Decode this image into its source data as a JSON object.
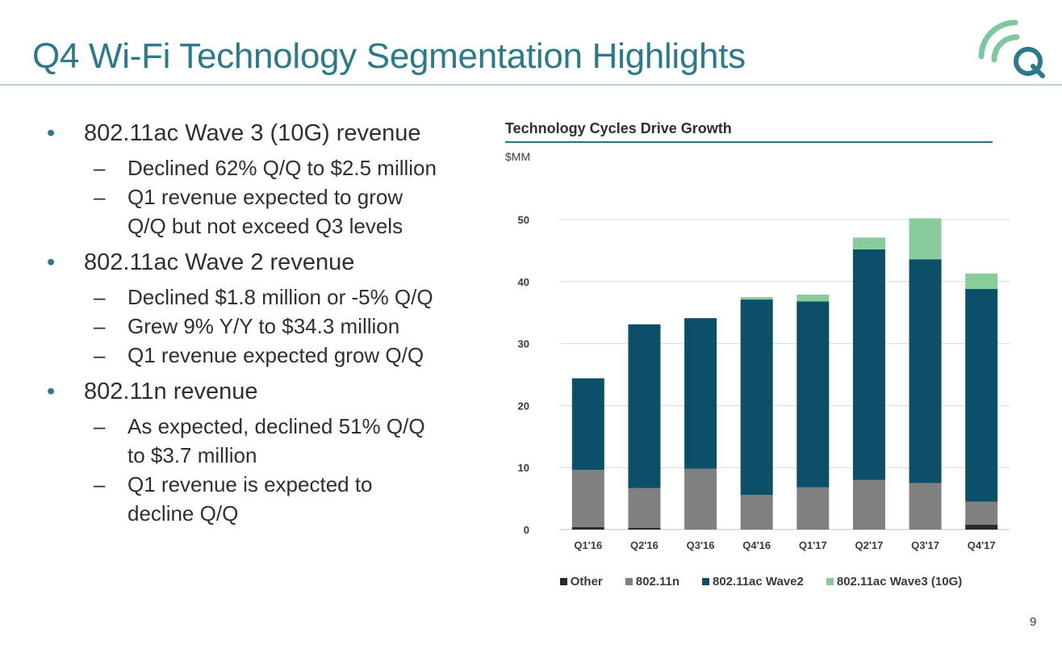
{
  "slide": {
    "title": "Q4 Wi-Fi Technology Segmentation Highlights",
    "page_number": "9",
    "colors": {
      "title": "#2b7a8c",
      "logo": "#7ec8a0",
      "logo_q": "#2b7a8c"
    }
  },
  "bullets": [
    {
      "text": "802.11ac Wave 3 (10G) revenue",
      "subs": [
        {
          "lines": [
            "Declined 62% Q/Q to $2.5 million"
          ]
        },
        {
          "lines": [
            "Q1 revenue expected to grow",
            "Q/Q but not exceed Q3 levels"
          ]
        }
      ]
    },
    {
      "text": "802.11ac Wave 2 revenue",
      "subs": [
        {
          "lines": [
            "Declined $1.8 million or -5% Q/Q"
          ]
        },
        {
          "lines": [
            "Grew 9% Y/Y to $34.3 million"
          ]
        },
        {
          "lines": [
            "Q1 revenue expected grow Q/Q"
          ]
        }
      ]
    },
    {
      "text": "802.11n revenue",
      "subs": [
        {
          "lines": [
            "As expected, declined 51% Q/Q",
            "to $3.7 million"
          ]
        },
        {
          "lines": [
            "Q1 revenue is expected to",
            "decline Q/Q"
          ]
        }
      ]
    }
  ],
  "chart_data": {
    "type": "bar",
    "stacked": true,
    "title": "Technology Cycles Drive Growth",
    "ylabel": "$MM",
    "xlabel": "",
    "ylim": [
      0,
      50
    ],
    "yticks": [
      0,
      10,
      20,
      30,
      40,
      50
    ],
    "grid": true,
    "legend_position": "bottom",
    "categories": [
      "Q1'16",
      "Q2'16",
      "Q3'16",
      "Q4'16",
      "Q1'17",
      "Q2'17",
      "Q3'17",
      "Q4'17"
    ],
    "series": [
      {
        "name": "Other",
        "color": "#2a2a2a",
        "values": [
          0.4,
          0.3,
          0,
          0,
          0,
          0,
          0,
          0.8
        ]
      },
      {
        "name": "802.11n",
        "color": "#808080",
        "values": [
          9.2,
          6.4,
          9.8,
          5.6,
          6.8,
          8.0,
          7.5,
          3.7
        ]
      },
      {
        "name": "802.11ac Wave2",
        "color": "#0b5068",
        "values": [
          14.8,
          26.4,
          24.3,
          31.5,
          30.0,
          37.2,
          36.1,
          34.3
        ]
      },
      {
        "name": "802.11ac Wave3 (10G)",
        "color": "#88cc9c",
        "values": [
          0,
          0,
          0,
          0.4,
          1.1,
          1.9,
          6.6,
          2.5
        ]
      }
    ]
  }
}
